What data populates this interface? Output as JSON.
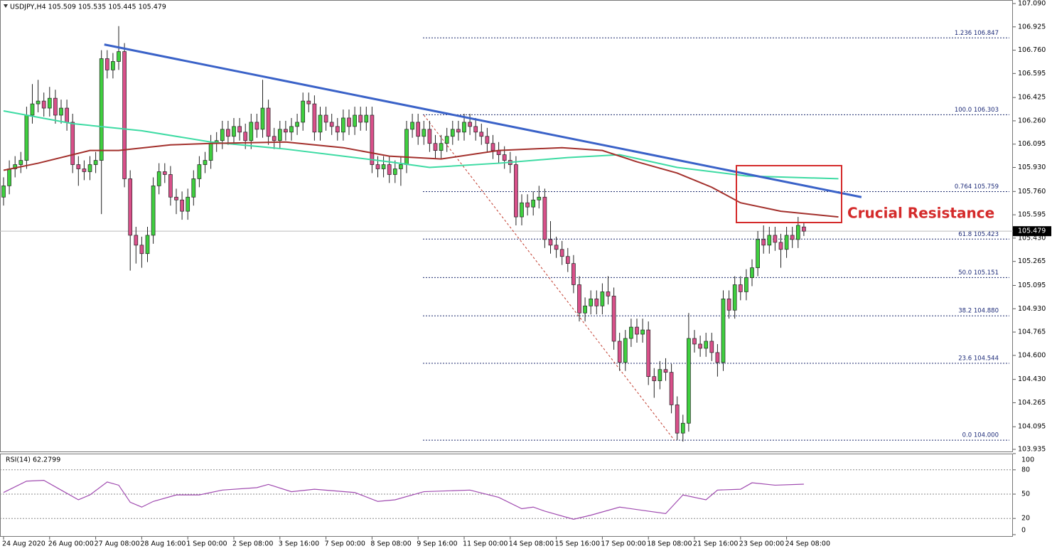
{
  "chart_data": [
    {
      "type": "candlestick",
      "title": "USDJPY,H4 105.509 105.535 105.445 105.479",
      "categories": [
        "24 Aug 2020",
        null,
        null,
        null,
        null,
        null,
        null,
        null,
        "26 Aug 00:00",
        null,
        null,
        null,
        null,
        null,
        null,
        null,
        "27 Aug 08:00",
        null,
        null,
        null,
        null,
        null,
        null,
        null,
        "28 Aug 16:00",
        null,
        null,
        null,
        null,
        null,
        null,
        null,
        "1 Sep 00:00",
        null,
        null,
        null,
        null,
        null,
        null,
        null,
        "2 Sep 08:00",
        null,
        null,
        null,
        null,
        null,
        null,
        null,
        "3 Sep 16:00",
        null,
        null,
        null,
        null,
        null,
        null,
        null,
        "7 Sep 00:00",
        null,
        null,
        null,
        null,
        null,
        null,
        null,
        "8 Sep 08:00",
        null,
        null,
        null,
        null,
        null,
        null,
        null,
        "9 Sep 16:00",
        null,
        null,
        null,
        null,
        null,
        null,
        null,
        "11 Sep 00:00",
        null,
        null,
        null,
        null,
        null,
        null,
        null,
        "14 Sep 08:00",
        null,
        null,
        null,
        null,
        null,
        null,
        null,
        "15 Sep 16:00",
        null,
        null,
        null,
        null,
        null,
        null,
        null,
        "17 Sep 00:00",
        null,
        null,
        null,
        null,
        null,
        null,
        null,
        "18 Sep 08:00",
        null,
        null,
        null,
        null,
        null,
        null,
        null,
        "21 Sep 16:00",
        null,
        null,
        null,
        null,
        null,
        null,
        null,
        "23 Sep 00:00",
        null,
        null,
        null,
        null,
        null,
        null,
        null,
        "24 Sep 08:00",
        null,
        null,
        null
      ],
      "open": [
        105.72,
        105.8,
        105.92,
        105.95,
        105.98,
        106.3,
        106.38,
        106.4,
        106.35,
        106.42,
        106.3,
        106.35,
        106.25,
        105.95,
        105.92,
        105.9,
        105.95,
        105.98,
        106.7,
        106.62,
        106.68,
        106.75,
        105.85,
        105.45,
        105.38,
        105.32,
        105.45,
        105.8,
        105.9,
        105.88,
        105.72,
        105.7,
        105.62,
        105.72,
        105.85,
        105.95,
        105.98,
        106.1,
        106.12,
        106.2,
        106.15,
        106.22,
        106.18,
        106.12,
        106.25,
        106.2,
        106.35,
        106.15,
        106.12,
        106.2,
        106.18,
        106.22,
        106.25,
        106.4,
        106.38,
        106.18,
        106.3,
        106.25,
        106.22,
        106.18,
        106.28,
        106.22,
        106.3,
        106.25,
        106.3,
        105.95,
        105.92,
        105.95,
        105.88,
        105.92,
        105.95,
        106.2,
        106.25,
        106.15,
        106.2,
        106.1,
        106.05,
        106.1,
        106.15,
        106.2,
        106.18,
        106.25,
        106.22,
        106.18,
        106.15,
        106.1,
        106.05,
        106.02,
        105.98,
        105.95,
        105.58,
        105.68,
        105.65,
        105.7,
        105.72,
        105.42,
        105.38,
        105.35,
        105.3,
        105.25,
        105.1,
        104.9,
        104.95,
        105.0,
        104.95,
        105.05,
        105.02,
        104.7,
        104.55,
        104.72,
        104.8,
        104.75,
        104.78,
        104.45,
        104.42,
        104.5,
        104.48,
        104.25,
        104.05,
        104.12,
        104.72,
        104.68,
        104.65,
        104.7,
        104.62,
        104.55,
        105.0,
        104.92,
        105.1,
        105.05,
        105.15,
        105.22,
        105.42,
        105.38,
        105.45,
        105.4,
        105.35,
        105.45,
        105.42,
        105.509
      ],
      "high": [
        105.86,
        105.98,
        106.01,
        106.04,
        106.36,
        106.52,
        106.55,
        106.46,
        106.5,
        106.48,
        106.41,
        106.41,
        106.31,
        106.01,
        105.98,
        106.01,
        106.04,
        106.76,
        106.76,
        106.74,
        106.93,
        106.81,
        105.91,
        105.51,
        105.44,
        105.51,
        105.86,
        105.96,
        105.96,
        105.94,
        105.78,
        105.76,
        105.78,
        105.91,
        106.01,
        106.04,
        106.16,
        106.18,
        106.26,
        106.26,
        106.28,
        106.28,
        106.24,
        106.31,
        106.31,
        106.55,
        106.41,
        106.21,
        106.26,
        106.26,
        106.28,
        106.31,
        106.46,
        106.46,
        106.44,
        106.36,
        106.36,
        106.31,
        106.28,
        106.34,
        106.34,
        106.36,
        106.36,
        106.36,
        106.36,
        106.01,
        106.01,
        106.01,
        105.98,
        106.01,
        106.26,
        106.31,
        106.31,
        106.26,
        106.26,
        106.16,
        106.16,
        106.21,
        106.26,
        106.26,
        106.31,
        106.31,
        106.28,
        106.24,
        106.21,
        106.16,
        106.11,
        106.08,
        106.04,
        106.01,
        105.74,
        105.74,
        105.76,
        105.8,
        105.78,
        105.55,
        105.44,
        105.41,
        105.36,
        105.31,
        105.16,
        105.01,
        105.06,
        105.06,
        105.11,
        105.16,
        105.08,
        104.76,
        104.78,
        104.86,
        104.86,
        104.86,
        104.84,
        104.51,
        104.56,
        104.58,
        104.54,
        104.31,
        104.18,
        104.9,
        104.78,
        104.74,
        104.76,
        104.76,
        104.68,
        105.06,
        105.06,
        105.16,
        105.16,
        105.21,
        105.28,
        105.48,
        105.52,
        105.51,
        105.51,
        105.46,
        105.51,
        105.51,
        105.58,
        105.535
      ],
      "low": [
        105.66,
        105.74,
        105.86,
        105.89,
        105.92,
        106.24,
        106.32,
        106.29,
        106.29,
        106.24,
        106.24,
        106.19,
        105.89,
        105.8,
        105.84,
        105.84,
        105.89,
        105.6,
        106.56,
        106.56,
        106.62,
        105.79,
        105.2,
        105.25,
        105.22,
        105.26,
        105.39,
        105.74,
        105.82,
        105.66,
        105.6,
        105.56,
        105.56,
        105.66,
        105.79,
        105.89,
        105.92,
        106.04,
        106.06,
        106.09,
        106.09,
        106.12,
        106.06,
        106.06,
        106.14,
        106.14,
        106.09,
        106.06,
        106.06,
        106.12,
        106.12,
        106.16,
        106.19,
        106.32,
        106.12,
        106.12,
        106.19,
        106.16,
        106.12,
        106.12,
        106.16,
        106.16,
        106.19,
        106.19,
        105.89,
        105.86,
        105.86,
        105.82,
        105.82,
        105.8,
        105.89,
        106.14,
        106.09,
        106.09,
        106.04,
        105.99,
        105.99,
        106.04,
        106.09,
        106.12,
        106.12,
        106.16,
        106.12,
        106.09,
        106.04,
        105.99,
        105.96,
        105.92,
        105.89,
        105.52,
        105.52,
        105.59,
        105.59,
        105.64,
        105.36,
        105.32,
        105.29,
        105.24,
        105.19,
        105.04,
        104.84,
        104.84,
        104.89,
        104.89,
        104.89,
        104.96,
        104.64,
        104.49,
        104.49,
        104.66,
        104.69,
        104.69,
        104.39,
        104.3,
        104.36,
        104.42,
        104.19,
        104.0,
        103.99,
        104.06,
        104.62,
        104.59,
        104.59,
        104.56,
        104.45,
        104.49,
        104.86,
        104.86,
        104.99,
        104.99,
        105.09,
        105.16,
        105.32,
        105.32,
        105.34,
        105.22,
        105.29,
        105.36,
        105.36,
        105.445
      ],
      "close": [
        105.8,
        105.92,
        105.95,
        105.98,
        106.3,
        106.38,
        106.4,
        106.35,
        106.42,
        106.3,
        106.35,
        106.25,
        105.95,
        105.92,
        105.9,
        105.95,
        105.98,
        106.7,
        106.62,
        106.68,
        106.75,
        105.85,
        105.45,
        105.38,
        105.32,
        105.45,
        105.8,
        105.9,
        105.88,
        105.72,
        105.7,
        105.62,
        105.72,
        105.85,
        105.95,
        105.98,
        106.1,
        106.12,
        106.2,
        106.15,
        106.22,
        106.18,
        106.12,
        106.25,
        106.2,
        106.35,
        106.15,
        106.12,
        106.2,
        106.18,
        106.22,
        106.25,
        106.4,
        106.38,
        106.18,
        106.3,
        106.25,
        106.22,
        106.18,
        106.28,
        106.22,
        106.3,
        106.25,
        106.3,
        105.95,
        105.92,
        105.95,
        105.88,
        105.92,
        105.95,
        106.2,
        106.25,
        106.15,
        106.2,
        106.1,
        106.05,
        106.1,
        106.15,
        106.2,
        106.18,
        106.25,
        106.22,
        106.18,
        106.15,
        106.1,
        106.05,
        106.02,
        105.98,
        105.95,
        105.58,
        105.68,
        105.65,
        105.7,
        105.72,
        105.42,
        105.38,
        105.35,
        105.3,
        105.25,
        105.1,
        104.9,
        104.95,
        105.0,
        104.95,
        105.05,
        105.02,
        104.7,
        104.55,
        104.72,
        104.8,
        104.75,
        104.78,
        104.45,
        104.42,
        104.5,
        104.48,
        104.25,
        104.05,
        104.12,
        104.72,
        104.68,
        104.65,
        104.7,
        104.62,
        104.55,
        105.0,
        104.92,
        105.1,
        105.05,
        105.15,
        105.22,
        105.42,
        105.38,
        105.45,
        105.4,
        105.35,
        105.45,
        105.42,
        105.52,
        105.479
      ],
      "up_color": "#3fcf3f",
      "down_color": "#d9508a",
      "ylim": [
        103.92,
        107.105
      ],
      "yticks": [
        {
          "value": 107.09,
          "label": "107.090"
        },
        {
          "value": 106.925,
          "label": "106.925"
        },
        {
          "value": 106.76,
          "label": "106.760"
        },
        {
          "value": 106.595,
          "label": "106.595"
        },
        {
          "value": 106.425,
          "label": "106.425"
        },
        {
          "value": 106.26,
          "label": "106.260"
        },
        {
          "value": 106.095,
          "label": "106.095"
        },
        {
          "value": 105.93,
          "label": "105.930"
        },
        {
          "value": 105.76,
          "label": "105.760"
        },
        {
          "value": 105.595,
          "label": "105.595"
        },
        {
          "value": 105.43,
          "label": "105.430"
        },
        {
          "value": 105.265,
          "label": "105.265"
        },
        {
          "value": 105.095,
          "label": "105.095"
        },
        {
          "value": 104.93,
          "label": "104.930"
        },
        {
          "value": 104.765,
          "label": "104.765"
        },
        {
          "value": 104.6,
          "label": "104.600"
        },
        {
          "value": 104.43,
          "label": "104.430"
        },
        {
          "value": 104.265,
          "label": "104.265"
        },
        {
          "value": 104.095,
          "label": "104.095"
        },
        {
          "value": 103.935,
          "label": "103.935"
        }
      ],
      "current_price": 105.479,
      "overlays": [
        {
          "color": "#3ddba3",
          "x": [
            0,
            12,
            24,
            36,
            49,
            61,
            67,
            74,
            86,
            98,
            107,
            117,
            129,
            145
          ],
          "values": [
            106.33,
            106.24,
            106.19,
            106.11,
            106.06,
            106.0,
            105.97,
            105.93,
            105.96,
            106.0,
            106.02,
            105.93,
            105.87,
            105.85
          ]
        },
        {
          "color": "#a3302c",
          "x": [
            0,
            6,
            15,
            20,
            29,
            36,
            49,
            59,
            67,
            76,
            86,
            97,
            104,
            110,
            117,
            123,
            128,
            135,
            145
          ],
          "values": [
            105.91,
            105.96,
            106.05,
            106.05,
            106.09,
            106.1,
            106.11,
            106.07,
            106.01,
            105.99,
            106.05,
            106.07,
            106.05,
            105.97,
            105.89,
            105.79,
            105.68,
            105.62,
            105.58
          ]
        }
      ],
      "trendline": {
        "color": "#3a62c8",
        "x": [
          17.5,
          149
        ],
        "values": [
          106.8,
          105.72
        ]
      },
      "retracement": {
        "color": "#c0392b",
        "x": [
          73,
          116.5
        ],
        "values": [
          106.3,
          104.0
        ]
      },
      "fib_levels": [
        {
          "label": "1.236 106.847",
          "value": 106.847
        },
        {
          "label": "100.0 106.303",
          "value": 106.303
        },
        {
          "label": "0.764 105.759",
          "value": 105.759
        },
        {
          "label": "61.8 105.423",
          "value": 105.423
        },
        {
          "label": "50.0 105.151",
          "value": 105.151
        },
        {
          "label": "38.2 104.880",
          "value": 104.88
        },
        {
          "label": "23.6 104.544",
          "value": 104.544
        },
        {
          "label": "0.0 104.000",
          "value": 104.0
        }
      ],
      "annotation": "Crucial Resistance"
    },
    {
      "type": "line",
      "title": "RSI(14) 62.2799",
      "color": "#a04bb0",
      "x": [
        0,
        4,
        7,
        10,
        13,
        15,
        18,
        20,
        22,
        24,
        26,
        30,
        34,
        38,
        44,
        46,
        50,
        54,
        61,
        65,
        68,
        73,
        81,
        86,
        90,
        92,
        94,
        99,
        102,
        107,
        110,
        115,
        118,
        122,
        124,
        128,
        130,
        134,
        139
      ],
      "values": [
        52,
        66,
        67,
        55,
        43,
        49,
        65,
        61,
        40,
        34,
        41,
        49,
        49,
        55,
        58,
        62,
        53,
        56,
        52,
        41,
        43,
        53,
        55,
        46,
        32,
        34,
        29,
        19,
        24,
        34,
        31,
        26,
        49,
        43,
        55,
        56,
        64,
        61,
        62.28
      ],
      "ylim": [
        0,
        100
      ],
      "yticks": [
        100,
        80,
        50,
        20,
        0
      ],
      "levels": [
        80,
        50,
        20
      ]
    }
  ]
}
